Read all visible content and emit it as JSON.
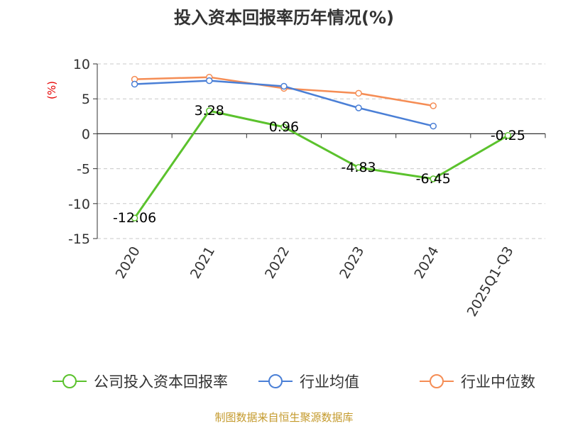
{
  "chart_data": {
    "type": "line",
    "title": "投入资本回报率历年情况(%)",
    "ylabel": "(%)",
    "xlabel": "",
    "categories": [
      "2020",
      "2021",
      "2022",
      "2023",
      "2024",
      "2025Q1-Q3"
    ],
    "ylim": [
      -15,
      10
    ],
    "yticks": [
      10,
      5,
      0,
      -5,
      -10,
      -15
    ],
    "grid": true,
    "legend_position": "bottom",
    "series": [
      {
        "name": "公司投入资本回报率",
        "color": "#5bc22d",
        "values": [
          -12.06,
          3.28,
          0.96,
          -4.83,
          -6.45,
          -0.25
        ],
        "labels": [
          "-12.06",
          "3.28",
          "0.96",
          "-4.83",
          "-6.45",
          "-0.25"
        ]
      },
      {
        "name": "行业均值",
        "color": "#4a7fd6",
        "values": [
          7.1,
          7.6,
          6.8,
          3.7,
          1.1,
          null
        ]
      },
      {
        "name": "行业中位数",
        "color": "#f58d55",
        "values": [
          7.8,
          8.1,
          6.5,
          5.8,
          4.0,
          null
        ]
      }
    ]
  },
  "source": "制图数据来自恒生聚源数据库"
}
